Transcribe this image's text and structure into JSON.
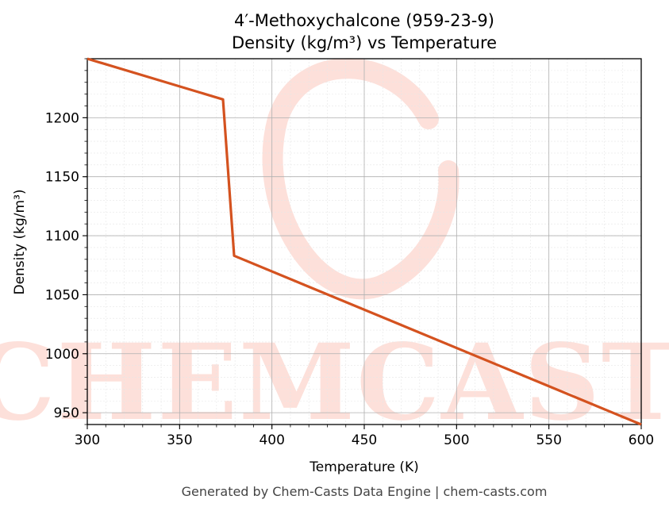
{
  "chart_data": {
    "type": "line",
    "title": "4′-Methoxychalcone (959-23-9)",
    "subtitle": "Density (kg/m³) vs Temperature",
    "xlabel": "Temperature (K)",
    "ylabel": "Density (kg/m³)",
    "xlim": [
      300,
      600
    ],
    "ylim": [
      940,
      1250
    ],
    "xticks": [
      300,
      350,
      400,
      450,
      500,
      550,
      600
    ],
    "yticks": [
      950,
      1000,
      1050,
      1100,
      1150,
      1200
    ],
    "grid": true,
    "series": [
      {
        "color": "#d4521f",
        "x": [
          300,
          373.5,
          379.5,
          600
        ],
        "y": [
          1250,
          1215.5,
          1083,
          940
        ]
      }
    ]
  },
  "watermark": {
    "text": "CHEMCASTS",
    "color": "#fde0da"
  },
  "footer": "Generated by Chem-Casts Data Engine | chem-casts.com"
}
